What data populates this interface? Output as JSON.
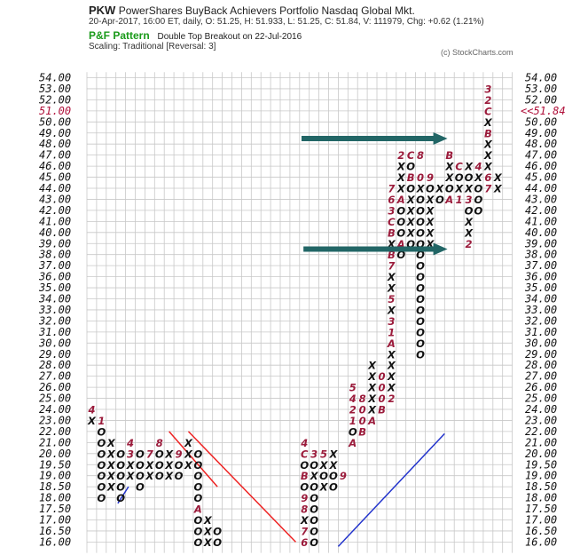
{
  "header": {
    "symbol": "PKW",
    "name": "PowerShares BuyBack Achievers Portfolio  Nasdaq Global Mkt.",
    "stats": "20-Apr-2017, 16:00 ET, daily, O: 51.25, H: 51.933, L: 51.25, C: 51.84, V: 111979, Chg: +0.62 (1.21%)",
    "pattern_label": "P&F Pattern",
    "pattern_text": "Double Top Breakout on 22-Jul-2016",
    "scaling": "Scaling: Traditional [Reversal: 3]",
    "credit": "(c) StockCharts.com"
  },
  "chart_data": {
    "type": "point-and-figure",
    "title": "PKW",
    "box_size": 0.5,
    "reversal": 3,
    "ylim": [
      16.0,
      54.0
    ],
    "y_ticks": [
      "54.00",
      "53.00",
      "52.00",
      "51.00",
      "50.00",
      "49.00",
      "48.00",
      "47.00",
      "46.00",
      "45.00",
      "44.00",
      "43.00",
      "42.00",
      "41.00",
      "40.00",
      "39.00",
      "38.00",
      "37.00",
      "36.00",
      "35.00",
      "34.00",
      "33.00",
      "32.00",
      "31.00",
      "30.00",
      "29.00",
      "28.00",
      "27.00",
      "26.00",
      "25.00",
      "24.00",
      "23.00",
      "22.00",
      "21.00",
      "20.00",
      "19.50",
      "19.00",
      "18.50",
      "18.00",
      "17.50",
      "17.00",
      "16.50",
      "16.00"
    ],
    "highlighted_tick": "51.00",
    "last_price_label": "<<51.84",
    "colors": {
      "x": "#111111",
      "o": "#111111",
      "month": "#9b1b3b",
      "highlight": "#b0103a",
      "arrow": "#226666",
      "bearish_line": "#ee2222",
      "bullish_line": "#2233cc"
    },
    "columns": [
      {
        "col": 0,
        "cells": [
          [
            "23.00",
            "X"
          ],
          [
            "24.00",
            "4"
          ]
        ]
      },
      {
        "col": 1,
        "cells": [
          [
            "23.00",
            "1"
          ],
          [
            "22.00",
            "O"
          ],
          [
            "21.00",
            "O"
          ],
          [
            "20.00",
            "O"
          ],
          [
            "19.50",
            "O"
          ],
          [
            "19.00",
            "O"
          ],
          [
            "18.50",
            "O"
          ],
          [
            "18.00",
            "O"
          ]
        ]
      },
      {
        "col": 2,
        "cells": [
          [
            "21.00",
            "X"
          ],
          [
            "20.00",
            "X"
          ],
          [
            "19.50",
            "X"
          ],
          [
            "19.00",
            "X"
          ],
          [
            "18.50",
            "X"
          ]
        ]
      },
      {
        "col": 3,
        "cells": [
          [
            "20.00",
            "O"
          ],
          [
            "19.50",
            "O"
          ],
          [
            "19.00",
            "O"
          ],
          [
            "18.50",
            "O"
          ],
          [
            "18.00",
            "O"
          ]
        ]
      },
      {
        "col": 4,
        "cells": [
          [
            "19.00",
            "X"
          ],
          [
            "19.50",
            "X"
          ],
          [
            "20.00",
            "3"
          ],
          [
            "21.00",
            "4"
          ]
        ]
      },
      {
        "col": 5,
        "cells": [
          [
            "20.00",
            "O"
          ],
          [
            "19.50",
            "O"
          ],
          [
            "19.00",
            "O"
          ],
          [
            "18.50",
            "O"
          ]
        ]
      },
      {
        "col": 6,
        "cells": [
          [
            "19.00",
            "X"
          ],
          [
            "19.50",
            "X"
          ],
          [
            "20.00",
            "7"
          ]
        ]
      },
      {
        "col": 7,
        "cells": [
          [
            "21.00",
            "8"
          ],
          [
            "20.00",
            "O"
          ],
          [
            "19.50",
            "O"
          ],
          [
            "19.00",
            "O"
          ]
        ]
      },
      {
        "col": 8,
        "cells": [
          [
            "19.00",
            "X"
          ],
          [
            "19.50",
            "X"
          ],
          [
            "20.00",
            "X"
          ]
        ]
      },
      {
        "col": 9,
        "cells": [
          [
            "20.00",
            "9"
          ],
          [
            "19.50",
            "O"
          ],
          [
            "19.00",
            "O"
          ]
        ]
      },
      {
        "col": 10,
        "cells": [
          [
            "21.00",
            "X"
          ],
          [
            "20.00",
            "X"
          ],
          [
            "19.50",
            "X"
          ]
        ]
      },
      {
        "col": 11,
        "cells": [
          [
            "20.00",
            "O"
          ],
          [
            "19.50",
            "O"
          ],
          [
            "19.00",
            "O"
          ],
          [
            "18.50",
            "O"
          ],
          [
            "18.00",
            "O"
          ],
          [
            "17.50",
            "A"
          ],
          [
            "17.00",
            "O"
          ],
          [
            "16.50",
            "O"
          ],
          [
            "16.00",
            "O"
          ]
        ]
      },
      {
        "col": 12,
        "cells": [
          [
            "17.00",
            "X"
          ],
          [
            "16.50",
            "X"
          ],
          [
            "16.00",
            "X"
          ]
        ]
      },
      {
        "col": 13,
        "cells": [
          [
            "16.50",
            "O"
          ],
          [
            "16.00",
            "O"
          ]
        ]
      },
      {
        "col": 22,
        "cells": [
          [
            "21.00",
            "4"
          ],
          [
            "20.00",
            "C"
          ],
          [
            "19.50",
            "O"
          ],
          [
            "19.00",
            "B"
          ],
          [
            "18.50",
            "O"
          ],
          [
            "18.00",
            "9"
          ],
          [
            "17.50",
            "8"
          ],
          [
            "17.00",
            "X"
          ],
          [
            "16.50",
            "7"
          ],
          [
            "16.00",
            "6"
          ]
        ]
      },
      {
        "col": 23,
        "cells": [
          [
            "20.00",
            "3"
          ],
          [
            "19.50",
            "O"
          ],
          [
            "19.00",
            "X"
          ],
          [
            "18.50",
            "O"
          ],
          [
            "18.00",
            "O"
          ],
          [
            "17.50",
            "O"
          ],
          [
            "17.00",
            "O"
          ],
          [
            "16.50",
            "O"
          ],
          [
            "16.00",
            "O"
          ]
        ]
      },
      {
        "col": 24,
        "cells": [
          [
            "20.00",
            "5"
          ],
          [
            "19.50",
            "X"
          ],
          [
            "19.00",
            "O"
          ],
          [
            "18.50",
            "X"
          ]
        ]
      },
      {
        "col": 25,
        "cells": [
          [
            "20.00",
            "X"
          ],
          [
            "19.50",
            "X"
          ],
          [
            "19.00",
            "O"
          ],
          [
            "18.50",
            "O"
          ]
        ]
      },
      {
        "col": 26,
        "cells": [
          [
            "19.00",
            "9"
          ]
        ]
      },
      {
        "col": 27,
        "cells": [
          [
            "21.00",
            "A"
          ],
          [
            "22.00",
            "O"
          ],
          [
            "23.00",
            "1"
          ],
          [
            "24.00",
            "2"
          ],
          [
            "25.00",
            "4"
          ],
          [
            "26.00",
            "5"
          ]
        ]
      },
      {
        "col": 28,
        "cells": [
          [
            "22.00",
            "B"
          ],
          [
            "23.00",
            "0"
          ],
          [
            "24.00",
            "0"
          ],
          [
            "25.00",
            "8"
          ]
        ]
      },
      {
        "col": 29,
        "cells": [
          [
            "23.00",
            "A"
          ],
          [
            "24.00",
            "X"
          ],
          [
            "25.00",
            "X"
          ],
          [
            "26.00",
            "X"
          ],
          [
            "27.00",
            "X"
          ],
          [
            "28.00",
            "X"
          ]
        ]
      },
      {
        "col": 30,
        "cells": [
          [
            "24.00",
            "B"
          ],
          [
            "25.00",
            "0"
          ],
          [
            "26.00",
            "0"
          ],
          [
            "27.00",
            "0"
          ]
        ]
      },
      {
        "col": 31,
        "cells": [
          [
            "25.00",
            "2"
          ],
          [
            "26.00",
            "X"
          ],
          [
            "27.00",
            "X"
          ],
          [
            "28.00",
            "X"
          ],
          [
            "29.00",
            "X"
          ],
          [
            "30.00",
            "A"
          ],
          [
            "31.00",
            "1"
          ],
          [
            "32.00",
            "3"
          ],
          [
            "33.00",
            "X"
          ],
          [
            "34.00",
            "5"
          ],
          [
            "35.00",
            "X"
          ],
          [
            "36.00",
            "X"
          ],
          [
            "37.00",
            "7"
          ],
          [
            "38.00",
            "B"
          ],
          [
            "39.00",
            "X"
          ],
          [
            "40.00",
            "B"
          ],
          [
            "41.00",
            "C"
          ],
          [
            "42.00",
            "3"
          ],
          [
            "43.00",
            "6"
          ],
          [
            "44.00",
            "7"
          ]
        ]
      },
      {
        "col": 32,
        "cells": [
          [
            "38.00",
            "O"
          ],
          [
            "39.00",
            "A"
          ],
          [
            "40.00",
            "O"
          ],
          [
            "41.00",
            "O"
          ],
          [
            "42.00",
            "O"
          ],
          [
            "43.00",
            "A"
          ],
          [
            "44.00",
            "X"
          ],
          [
            "45.00",
            "X"
          ],
          [
            "46.00",
            "X"
          ],
          [
            "47.00",
            "2"
          ]
        ]
      },
      {
        "col": 33,
        "cells": [
          [
            "39.00",
            "O"
          ],
          [
            "40.00",
            "X"
          ],
          [
            "41.00",
            "X"
          ],
          [
            "42.00",
            "X"
          ],
          [
            "43.00",
            "X"
          ],
          [
            "44.00",
            "O"
          ],
          [
            "45.00",
            "B"
          ],
          [
            "46.00",
            "O"
          ],
          [
            "47.00",
            "C"
          ]
        ]
      },
      {
        "col": 34,
        "cells": [
          [
            "29.00",
            "O"
          ],
          [
            "30.00",
            "O"
          ],
          [
            "31.00",
            "O"
          ],
          [
            "32.00",
            "O"
          ],
          [
            "33.00",
            "O"
          ],
          [
            "34.00",
            "O"
          ],
          [
            "35.00",
            "O"
          ],
          [
            "36.00",
            "O"
          ],
          [
            "37.00",
            "O"
          ],
          [
            "38.00",
            "O"
          ],
          [
            "39.00",
            "O"
          ],
          [
            "40.00",
            "O"
          ],
          [
            "41.00",
            "O"
          ],
          [
            "42.00",
            "O"
          ],
          [
            "43.00",
            "O"
          ],
          [
            "44.00",
            "X"
          ],
          [
            "45.00",
            "0"
          ],
          [
            "47.00",
            "8"
          ]
        ]
      },
      {
        "col": 35,
        "cells": [
          [
            "39.00",
            "X"
          ],
          [
            "40.00",
            "X"
          ],
          [
            "41.00",
            "X"
          ],
          [
            "42.00",
            "X"
          ],
          [
            "43.00",
            "X"
          ],
          [
            "44.00",
            "O"
          ],
          [
            "45.00",
            "9"
          ]
        ]
      },
      {
        "col": 36,
        "cells": [
          [
            "43.00",
            "O"
          ],
          [
            "44.00",
            "X"
          ]
        ]
      },
      {
        "col": 37,
        "cells": [
          [
            "43.00",
            "A"
          ],
          [
            "44.00",
            "O"
          ],
          [
            "45.00",
            "X"
          ],
          [
            "46.00",
            "X"
          ],
          [
            "47.00",
            "B"
          ]
        ]
      },
      {
        "col": 38,
        "cells": [
          [
            "43.00",
            "1"
          ],
          [
            "44.00",
            "X"
          ],
          [
            "45.00",
            "O"
          ],
          [
            "46.00",
            "C"
          ]
        ]
      },
      {
        "col": 39,
        "cells": [
          [
            "39.00",
            "2"
          ],
          [
            "40.00",
            "X"
          ],
          [
            "41.00",
            "X"
          ],
          [
            "42.00",
            "O"
          ],
          [
            "43.00",
            "3"
          ],
          [
            "44.00",
            "X"
          ],
          [
            "45.00",
            "O"
          ],
          [
            "46.00",
            "X"
          ]
        ]
      },
      {
        "col": 40,
        "cells": [
          [
            "42.00",
            "O"
          ],
          [
            "43.00",
            "O"
          ],
          [
            "44.00",
            "O"
          ],
          [
            "45.00",
            "X"
          ],
          [
            "46.00",
            "4"
          ]
        ]
      },
      {
        "col": 41,
        "cells": [
          [
            "44.00",
            "7"
          ],
          [
            "45.00",
            "6"
          ],
          [
            "46.00",
            "X"
          ],
          [
            "47.00",
            "X"
          ],
          [
            "48.00",
            "X"
          ],
          [
            "49.00",
            "B"
          ],
          [
            "50.00",
            "X"
          ],
          [
            "51.00",
            "C"
          ],
          [
            "52.00",
            "2"
          ],
          [
            "53.00",
            "3"
          ]
        ]
      },
      {
        "col": 42,
        "cells": [
          [
            "44.00",
            "X"
          ],
          [
            "45.00",
            "X"
          ]
        ]
      }
    ],
    "trendlines": [
      {
        "kind": "bearish",
        "from": [
          8.5,
          "22.00"
        ],
        "to": [
          13.5,
          "18.50"
        ]
      },
      {
        "kind": "bearish",
        "from": [
          10.5,
          "22.00"
        ],
        "to": [
          21.6,
          "16.00"
        ]
      },
      {
        "kind": "bullish",
        "from": [
          3.2,
          "17.75"
        ],
        "to": [
          4.3,
          "18.50"
        ]
      },
      {
        "kind": "bullish",
        "from": [
          26.0,
          "15.80"
        ],
        "to": [
          37.0,
          "21.80"
        ]
      }
    ],
    "arrows": [
      {
        "from": [
          22.2,
          "48.50"
        ],
        "to": [
          37.3,
          "48.50"
        ]
      },
      {
        "from": [
          22.4,
          "38.50"
        ],
        "to": [
          37.3,
          "38.50"
        ]
      }
    ]
  }
}
